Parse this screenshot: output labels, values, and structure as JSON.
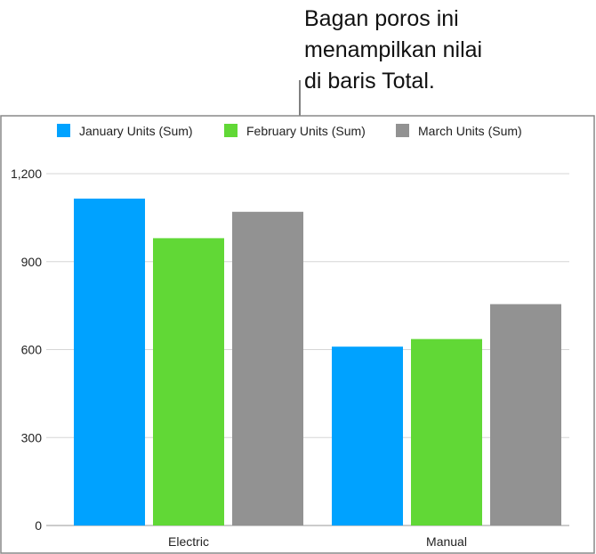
{
  "callout": "Bagan poros ini\nmenampilkan nilai\ndi baris Total.",
  "chart_data": {
    "type": "bar",
    "categories": [
      "Electric",
      "Manual"
    ],
    "series": [
      {
        "name": "January Units (Sum)",
        "color": "#00a2ff",
        "values": [
          1115,
          610
        ]
      },
      {
        "name": "February Units (Sum)",
        "color": "#61d836",
        "values": [
          980,
          636
        ]
      },
      {
        "name": "March Units (Sum)",
        "color": "#929292",
        "values": [
          1070,
          755
        ]
      }
    ],
    "ylim": [
      0,
      1200
    ],
    "yticks": [
      "0",
      "300",
      "600",
      "900",
      "1,200"
    ],
    "grid": true,
    "legend": "top"
  }
}
